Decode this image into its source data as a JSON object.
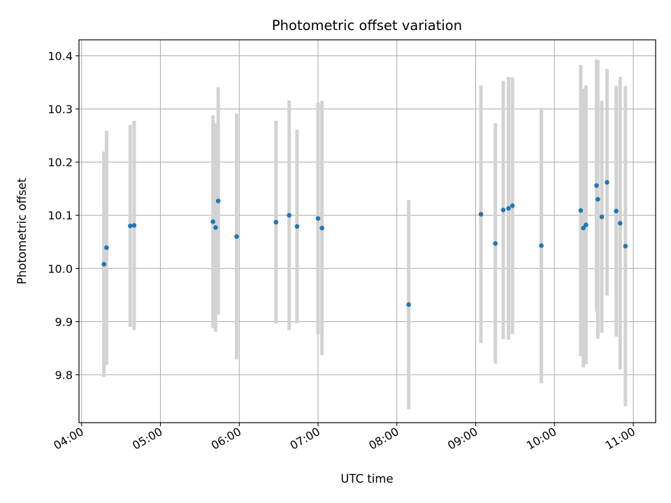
{
  "chart_data": {
    "type": "scatter",
    "title": "Photometric offset variation",
    "xlabel": "UTC time",
    "ylabel": "Photometric offset",
    "grid": true,
    "xlim": [
      "03:58",
      "11:17"
    ],
    "ylim": [
      9.71,
      10.43
    ],
    "x_ticks": [
      "04:00",
      "05:00",
      "06:00",
      "07:00",
      "08:00",
      "09:00",
      "10:00",
      "11:00"
    ],
    "y_ticks": [
      "9.8",
      "9.9",
      "10.0",
      "10.1",
      "10.2",
      "10.3",
      "10.4"
    ],
    "colors": {
      "point": "#1f77b4",
      "error_bar": "#d3d3d3",
      "grid": "#b0b0b0"
    },
    "points": [
      {
        "x": "04:17",
        "y": 10.008,
        "err": 0.212
      },
      {
        "x": "04:19",
        "y": 10.039,
        "err": 0.22
      },
      {
        "x": "04:37",
        "y": 10.08,
        "err": 0.19
      },
      {
        "x": "04:40",
        "y": 10.081,
        "err": 0.197
      },
      {
        "x": "05:40",
        "y": 10.088,
        "err": 0.2
      },
      {
        "x": "05:42",
        "y": 10.077,
        "err": 0.196
      },
      {
        "x": "05:44",
        "y": 10.127,
        "err": 0.214
      },
      {
        "x": "05:58",
        "y": 10.06,
        "err": 0.231
      },
      {
        "x": "06:28",
        "y": 10.087,
        "err": 0.191
      },
      {
        "x": "06:38",
        "y": 10.1,
        "err": 0.216
      },
      {
        "x": "06:44",
        "y": 10.079,
        "err": 0.182
      },
      {
        "x": "07:00",
        "y": 10.094,
        "err": 0.218
      },
      {
        "x": "07:03",
        "y": 10.076,
        "err": 0.239
      },
      {
        "x": "08:09",
        "y": 9.932,
        "err": 0.197
      },
      {
        "x": "09:04",
        "y": 10.102,
        "err": 0.242
      },
      {
        "x": "09:15",
        "y": 10.047,
        "err": 0.226
      },
      {
        "x": "09:21",
        "y": 10.11,
        "err": 0.243
      },
      {
        "x": "09:25",
        "y": 10.113,
        "err": 0.247
      },
      {
        "x": "09:28",
        "y": 10.118,
        "err": 0.241
      },
      {
        "x": "09:50",
        "y": 10.043,
        "err": 0.259
      },
      {
        "x": "10:20",
        "y": 10.109,
        "err": 0.274
      },
      {
        "x": "10:22",
        "y": 10.076,
        "err": 0.262
      },
      {
        "x": "10:24",
        "y": 10.082,
        "err": 0.262
      },
      {
        "x": "10:32",
        "y": 10.156,
        "err": 0.237
      },
      {
        "x": "10:33",
        "y": 10.13,
        "err": 0.262
      },
      {
        "x": "10:36",
        "y": 10.097,
        "err": 0.218
      },
      {
        "x": "10:40",
        "y": 10.162,
        "err": 0.213
      },
      {
        "x": "10:47",
        "y": 10.108,
        "err": 0.236
      },
      {
        "x": "10:50",
        "y": 10.085,
        "err": 0.275
      },
      {
        "x": "10:54",
        "y": 10.042,
        "err": 0.301
      }
    ]
  }
}
